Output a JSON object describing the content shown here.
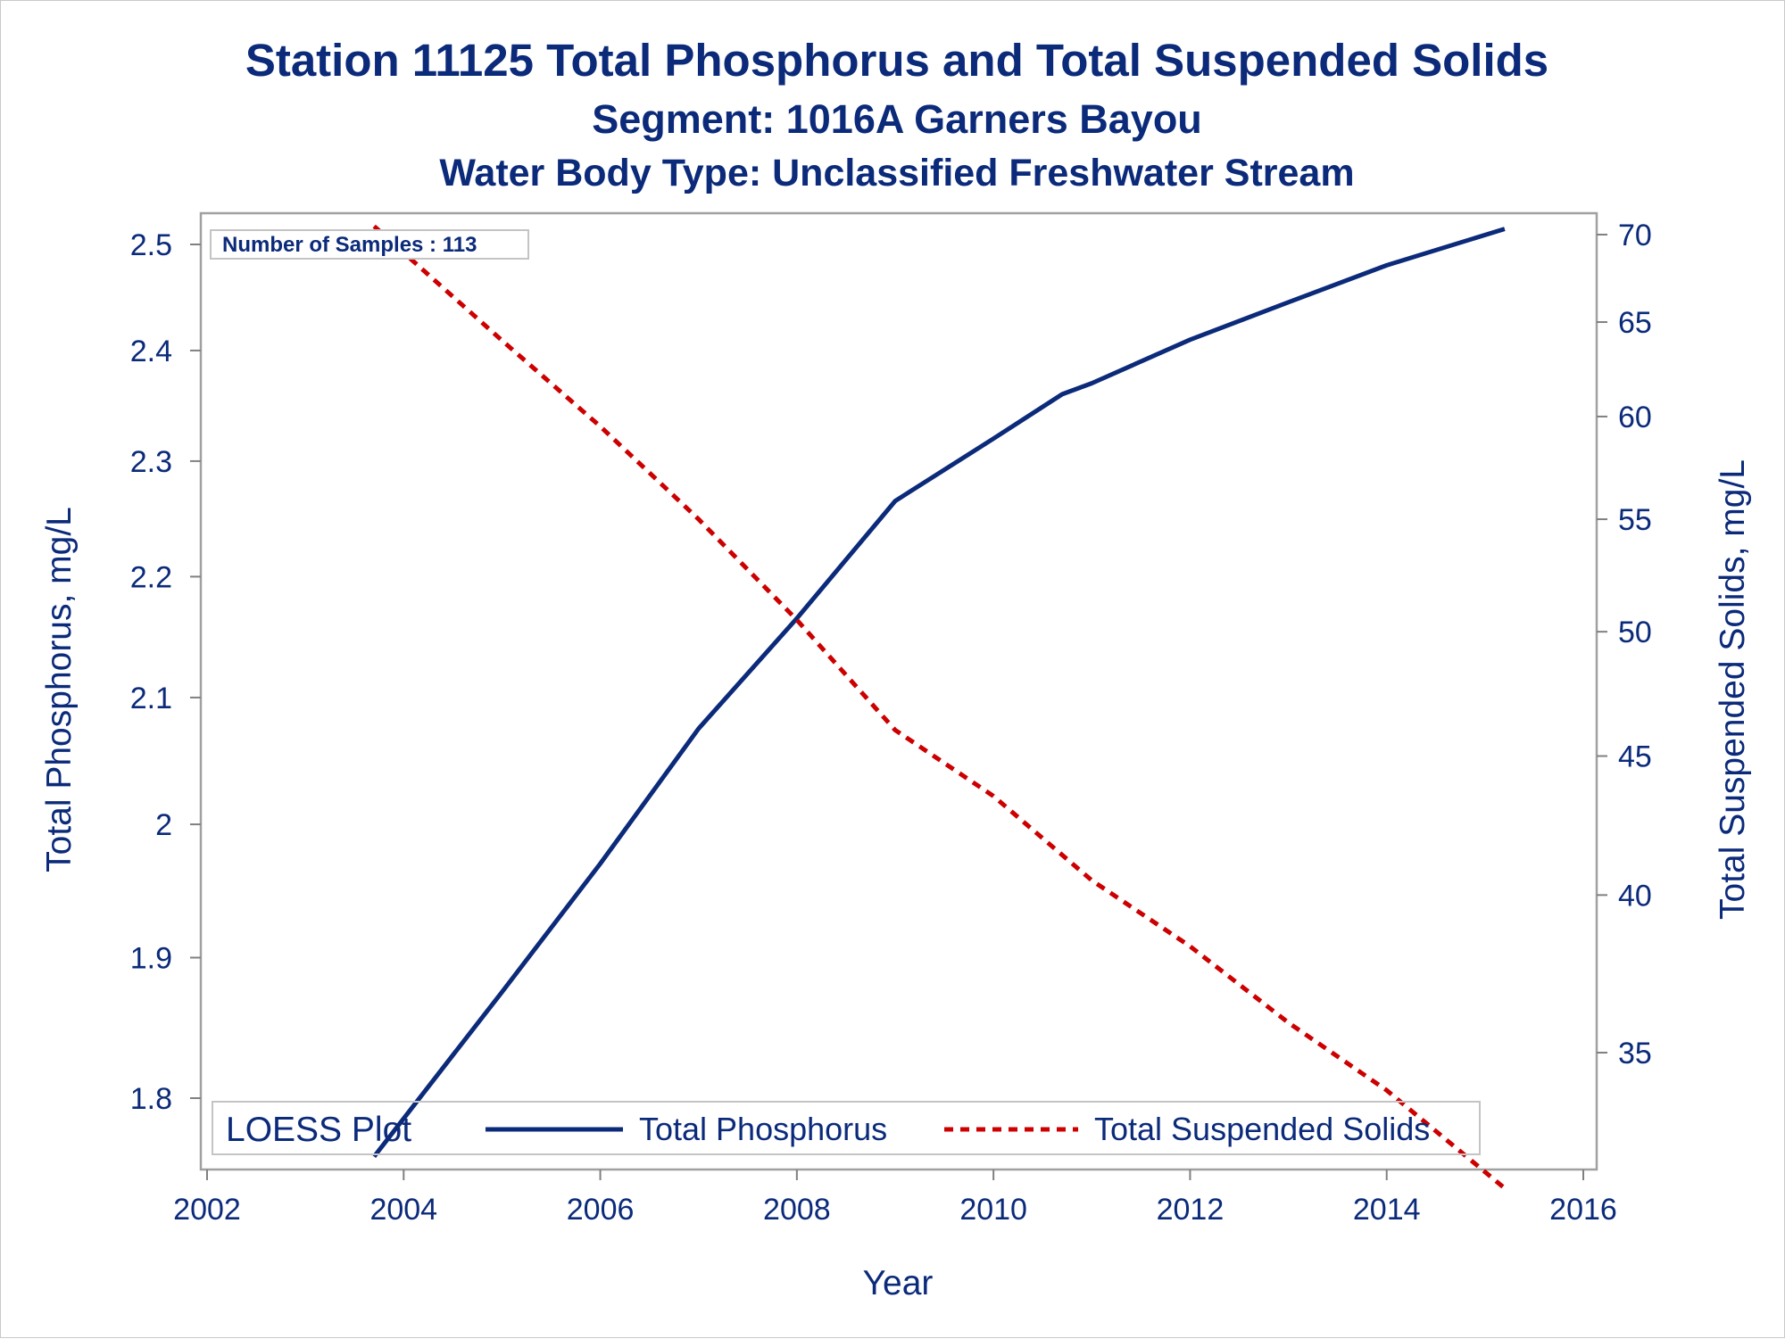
{
  "chart_data": {
    "type": "line",
    "title": "Station 11125  Total Phosphorus and Total Suspended Solids",
    "subtitle": "Segment: 1016A  Garners Bayou",
    "subtitle2": "Water Body Type: Unclassified Freshwater Stream",
    "xlabel": "Year",
    "ylabel_left": "Total Phosphorus, mg/L",
    "ylabel_right": "Total Suspended Solids, mg/L",
    "inset_text": "Number of Samples : 113",
    "legend_title": "LOESS Plot",
    "legend_placement": "bottom-inside",
    "grid": false,
    "xlim": [
      2002,
      2016
    ],
    "x_ticks": [
      2002,
      2004,
      2006,
      2008,
      2010,
      2012,
      2014,
      2016
    ],
    "x_tick_labels": [
      "2002",
      "2004",
      "2006",
      "2008",
      "2010",
      "2012",
      "2014",
      "2016"
    ],
    "y_left_scale": "log",
    "y_left_ticks": [
      1.8,
      1.9,
      2,
      2.1,
      2.2,
      2.3,
      2.4,
      2.5
    ],
    "y_left_tick_labels": [
      "1.8",
      "1.9",
      "2",
      "2.1",
      "2.2",
      "2.3",
      "2.4",
      "2.5"
    ],
    "y_right_scale": "log",
    "y_right_ticks": [
      35,
      40,
      45,
      50,
      55,
      60,
      65,
      70
    ],
    "y_right_tick_labels": [
      "35",
      "40",
      "45",
      "50",
      "55",
      "60",
      "65",
      "70"
    ],
    "series": [
      {
        "name": "Total Phosphorus",
        "axis": "left",
        "color": "#0b2a7a",
        "style": "solid",
        "x": [
          2003.7,
          2004.5,
          2005,
          2006,
          2007,
          2008,
          2009,
          2010,
          2010.7,
          2011,
          2012,
          2013,
          2014,
          2015.2
        ],
        "y": [
          1.76,
          1.83,
          1.875,
          1.97,
          2.075,
          2.165,
          2.265,
          2.32,
          2.36,
          2.37,
          2.41,
          2.445,
          2.48,
          2.515
        ]
      },
      {
        "name": "Total Suspended Solids",
        "axis": "right",
        "color": "#cc0000",
        "style": "dashed",
        "x": [
          2003.7,
          2005,
          2006,
          2007,
          2008,
          2009,
          2010,
          2011,
          2012,
          2013,
          2014,
          2015.2
        ],
        "y": [
          70.5,
          64,
          59.5,
          55,
          50.5,
          46,
          43.5,
          40.5,
          38.3,
          35.9,
          33.9,
          31.2
        ]
      }
    ]
  }
}
